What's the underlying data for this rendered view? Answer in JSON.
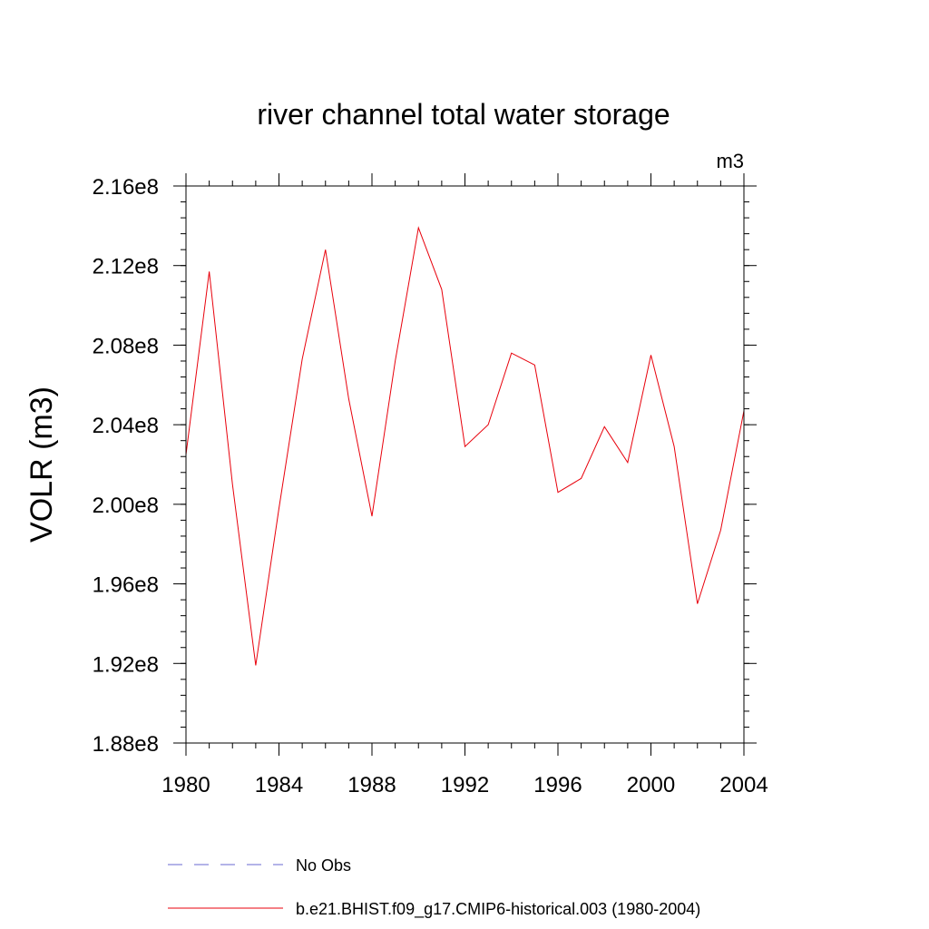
{
  "chart_data": {
    "type": "line",
    "title": "river channel total water storage",
    "units_label": "m3",
    "ylabel": "VOLR  (m3)",
    "xlabel": "",
    "xlim": [
      1980,
      2004
    ],
    "ylim": [
      188000000,
      216000000
    ],
    "x_ticks": [
      {
        "value": 1980,
        "label": "1980"
      },
      {
        "value": 1984,
        "label": "1984"
      },
      {
        "value": 1988,
        "label": "1988"
      },
      {
        "value": 1992,
        "label": "1992"
      },
      {
        "value": 1996,
        "label": "1996"
      },
      {
        "value": 2000,
        "label": "2000"
      },
      {
        "value": 2004,
        "label": "2004"
      }
    ],
    "y_ticks": [
      {
        "value": 188000000,
        "label": "1.88e8"
      },
      {
        "value": 192000000,
        "label": "1.92e8"
      },
      {
        "value": 196000000,
        "label": "1.96e8"
      },
      {
        "value": 200000000,
        "label": "2.00e8"
      },
      {
        "value": 204000000,
        "label": "2.04e8"
      },
      {
        "value": 208000000,
        "label": "2.08e8"
      },
      {
        "value": 212000000,
        "label": "2.12e8"
      },
      {
        "value": 216000000,
        "label": "2.16e8"
      }
    ],
    "grid": false,
    "legend_position": "bottom",
    "series": [
      {
        "name": "b.e21.BHIST.f09_g17.CMIP6-historical.003 (1980-2004)",
        "color": "#e8000b",
        "line_style": "solid",
        "x": [
          1980,
          1981,
          1982,
          1983,
          1984,
          1985,
          1986,
          1987,
          1988,
          1989,
          1990,
          1991,
          1992,
          1993,
          1994,
          1995,
          1996,
          1997,
          1998,
          1999,
          2000,
          2001,
          2002,
          2003,
          2004
        ],
        "y": [
          202500000,
          211700000,
          201000000,
          191900000,
          199800000,
          207300000,
          212800000,
          205300000,
          199400000,
          207200000,
          213900000,
          210800000,
          202900000,
          204000000,
          207600000,
          207000000,
          200600000,
          201300000,
          203900000,
          202100000,
          207500000,
          202900000,
          195000000,
          198700000,
          204700000
        ]
      },
      {
        "name": "No Obs",
        "color": "#6a6ad0",
        "line_style": "dashed",
        "x": [],
        "y": []
      }
    ]
  }
}
